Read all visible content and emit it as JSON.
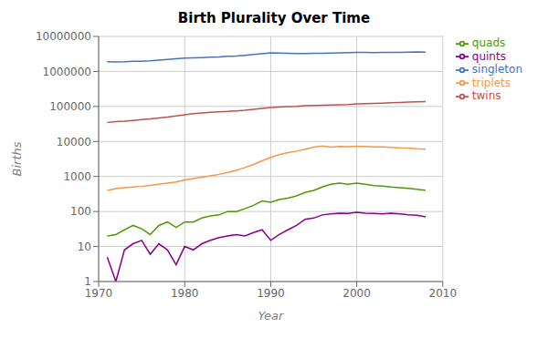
{
  "chart_data": {
    "type": "line",
    "title": "Birth Plurality Over Time",
    "x_label": "Year",
    "y_label": "Births",
    "x": [
      1971,
      1972,
      1973,
      1974,
      1975,
      1976,
      1977,
      1978,
      1979,
      1980,
      1981,
      1982,
      1983,
      1984,
      1985,
      1986,
      1987,
      1988,
      1989,
      1990,
      1991,
      1992,
      1993,
      1994,
      1995,
      1996,
      1997,
      1998,
      1999,
      2000,
      2001,
      2002,
      2003,
      2004,
      2005,
      2006,
      2007,
      2008
    ],
    "series": [
      {
        "name": "singleton",
        "color": "#4472C4",
        "values": [
          1900000,
          1880000,
          1900000,
          1950000,
          1960000,
          2000000,
          2100000,
          2200000,
          2300000,
          2400000,
          2450000,
          2500000,
          2550000,
          2600000,
          2700000,
          2740000,
          2900000,
          3050000,
          3200000,
          3400000,
          3350000,
          3300000,
          3250000,
          3270000,
          3280000,
          3320000,
          3360000,
          3400000,
          3440000,
          3500000,
          3480000,
          3470000,
          3490000,
          3500000,
          3520000,
          3570000,
          3600000,
          3580000
        ]
      },
      {
        "name": "twins",
        "color": "#C0504D",
        "values": [
          35000,
          37000,
          38000,
          40000,
          42000,
          44000,
          47000,
          50000,
          54000,
          58000,
          62000,
          65000,
          68000,
          70000,
          72000,
          75000,
          78000,
          83000,
          88000,
          93000,
          96000,
          99000,
          100000,
          105000,
          107000,
          108000,
          110000,
          112000,
          114000,
          118000,
          120000,
          122000,
          125000,
          128000,
          130000,
          133000,
          136000,
          138000
        ]
      },
      {
        "name": "triplets",
        "color": "#F79646",
        "values": [
          400,
          450,
          480,
          500,
          520,
          560,
          600,
          650,
          700,
          800,
          870,
          950,
          1050,
          1150,
          1300,
          1500,
          1800,
          2200,
          2800,
          3500,
          4200,
          4800,
          5300,
          6000,
          6900,
          7400,
          6900,
          7200,
          7100,
          7300,
          7200,
          7000,
          7000,
          6800,
          6600,
          6500,
          6200,
          6000
        ]
      },
      {
        "name": "quads",
        "color": "#4E9A06",
        "values": [
          20,
          22,
          30,
          40,
          32,
          22,
          40,
          50,
          35,
          50,
          50,
          65,
          75,
          80,
          100,
          100,
          120,
          150,
          200,
          185,
          220,
          240,
          280,
          350,
          400,
          500,
          600,
          650,
          600,
          650,
          600,
          550,
          530,
          500,
          480,
          460,
          430,
          400
        ]
      },
      {
        "name": "quints",
        "color": "#8B008B",
        "values": [
          5,
          1,
          8,
          12,
          15,
          6,
          12,
          8,
          3,
          10,
          8,
          12,
          15,
          18,
          20,
          22,
          20,
          25,
          30,
          15,
          22,
          30,
          40,
          60,
          65,
          80,
          85,
          90,
          88,
          95,
          90,
          88,
          85,
          90,
          85,
          80,
          78,
          70
        ]
      }
    ],
    "xlim": [
      1970,
      2010
    ],
    "xticks": [
      1970,
      1980,
      1990,
      2000,
      2010
    ],
    "ylim": [
      1,
      10000000
    ],
    "yticks": [
      1,
      10,
      100,
      1000,
      10000,
      100000,
      1000000,
      10000000
    ],
    "log": "y",
    "grid": true,
    "legend": "right"
  }
}
